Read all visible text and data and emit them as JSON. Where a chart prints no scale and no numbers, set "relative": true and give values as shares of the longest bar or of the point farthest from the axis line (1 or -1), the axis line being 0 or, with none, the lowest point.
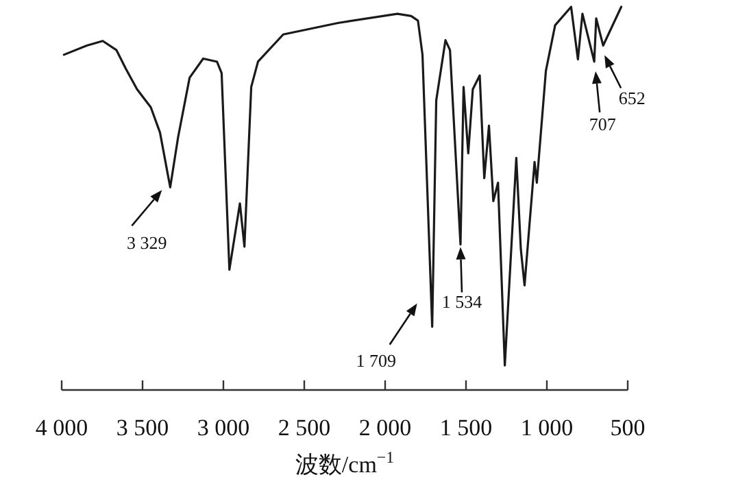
{
  "chart_data": {
    "type": "line",
    "relative": true,
    "xlabel": "波数/cm$^{−1}$",
    "xlim": [
      4000,
      500
    ],
    "xticks": [
      {
        "value": 4000,
        "label": "4 000"
      },
      {
        "value": 3500,
        "label": "3 500"
      },
      {
        "value": 3000,
        "label": "3 000"
      },
      {
        "value": 2500,
        "label": "2 500"
      },
      {
        "value": 2000,
        "label": "2 000"
      },
      {
        "value": 1500,
        "label": "1 500"
      },
      {
        "value": 1000,
        "label": "1 000"
      },
      500
    ],
    "tick_labels": "x",
    "grid": false,
    "marker": "none",
    "line_style": "solid",
    "series": [
      {
        "color": "#1a1a1a",
        "x": [
          3986,
          3845,
          3746,
          3661,
          3604,
          3534,
          3449,
          3392,
          3329,
          3280,
          3209,
          3125,
          3040,
          3011,
          2963,
          2898,
          2870,
          2828,
          2786,
          2630,
          2291,
          1924,
          1839,
          1797,
          1769,
          1709,
          1684,
          1627,
          1599,
          1534,
          1515,
          1486,
          1458,
          1415,
          1387,
          1358,
          1331,
          1302,
          1260,
          1189,
          1161,
          1138,
          1076,
          1062,
          1006,
          949,
          850,
          808,
          780,
          707,
          695,
          652,
          540
        ],
        "values": [
          0.875,
          0.899,
          0.911,
          0.887,
          0.839,
          0.785,
          0.738,
          0.672,
          0.529,
          0.66,
          0.815,
          0.865,
          0.857,
          0.827,
          0.314,
          0.487,
          0.374,
          0.791,
          0.857,
          0.928,
          0.958,
          0.982,
          0.976,
          0.964,
          0.875,
          0.165,
          0.756,
          0.913,
          0.887,
          0.38,
          0.791,
          0.618,
          0.785,
          0.821,
          0.553,
          0.69,
          0.493,
          0.541,
          0.064,
          0.606,
          0.368,
          0.273,
          0.595,
          0.541,
          0.833,
          0.952,
          1.0,
          0.863,
          0.982,
          0.857,
          0.97,
          0.899,
          1.0
        ]
      }
    ],
    "annotations": [
      {
        "text": "3 329",
        "x": 3329,
        "y": 0.529
      },
      {
        "text": "1 709",
        "x": 1709,
        "y": 0.165
      },
      {
        "text": "1 534",
        "x": 1534,
        "y": 0.38
      },
      {
        "text": "707",
        "x": 707,
        "y": 0.857
      },
      {
        "text": "652",
        "x": 652,
        "y": 0.899
      }
    ]
  }
}
